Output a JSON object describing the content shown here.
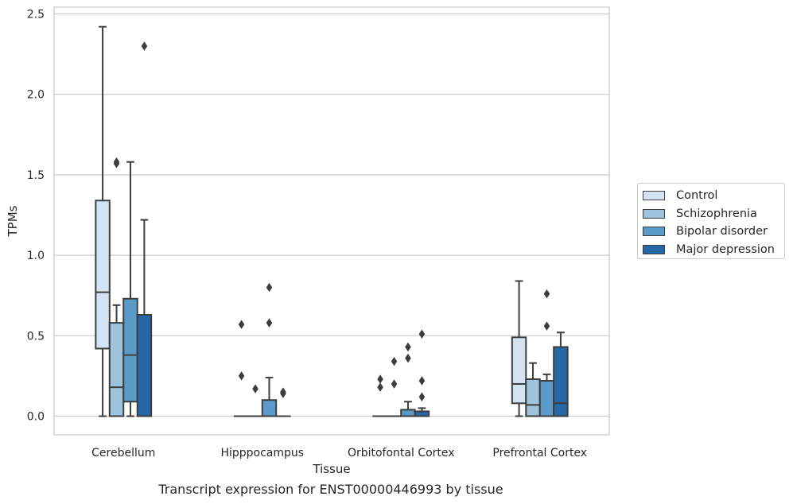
{
  "chart_data": {
    "type": "box",
    "title": "",
    "caption": "Transcript expression for ENST00000446993 by tissue",
    "xlabel": "Tissue",
    "ylabel": "TPMs",
    "ylim": [
      -0.12,
      2.55
    ],
    "yticks": [
      0.0,
      0.5,
      1.0,
      1.5,
      2.0,
      2.5
    ],
    "ytick_labels": [
      "0.0",
      "0.5",
      "1.0",
      "1.5",
      "2.0",
      "2.5"
    ],
    "grid": "horizontal",
    "legend_position": "right, outside plot",
    "categories": [
      "Cerebellum",
      "Hipppocampus",
      "Orbitofontal Cortex",
      "Prefrontal Cortex"
    ],
    "series": [
      {
        "name": "Control",
        "color": "#d3e3f1",
        "boxes": [
          {
            "whislo": 0.0,
            "q1": 0.42,
            "med": 0.77,
            "q3": 1.34,
            "whishi": 2.42,
            "fliers": []
          },
          {
            "whislo": 0.0,
            "q1": 0.0,
            "med": 0.0,
            "q3": 0.0,
            "whishi": 0.0,
            "fliers": [
              0.25,
              0.57
            ]
          },
          {
            "whislo": 0.0,
            "q1": 0.0,
            "med": 0.0,
            "q3": 0.0,
            "whishi": 0.0,
            "fliers": [
              0.18,
              0.23
            ]
          },
          {
            "whislo": 0.0,
            "q1": 0.08,
            "med": 0.2,
            "q3": 0.49,
            "whishi": 0.84,
            "fliers": []
          }
        ]
      },
      {
        "name": "Schizophrenia",
        "color": "#9dc3dd",
        "boxes": [
          {
            "whislo": 0.0,
            "q1": 0.0,
            "med": 0.18,
            "q3": 0.58,
            "whishi": 0.69,
            "fliers": [
              1.57,
              1.58
            ]
          },
          {
            "whislo": 0.0,
            "q1": 0.0,
            "med": 0.0,
            "q3": 0.0,
            "whishi": 0.0,
            "fliers": [
              0.17
            ]
          },
          {
            "whislo": 0.0,
            "q1": 0.0,
            "med": 0.0,
            "q3": 0.0,
            "whishi": 0.0,
            "fliers": [
              0.2,
              0.34
            ]
          },
          {
            "whislo": 0.0,
            "q1": 0.0,
            "med": 0.07,
            "q3": 0.23,
            "whishi": 0.33,
            "fliers": []
          }
        ]
      },
      {
        "name": "Bipolar disorder",
        "color": "#5a9bc9",
        "boxes": [
          {
            "whislo": 0.0,
            "q1": 0.09,
            "med": 0.38,
            "q3": 0.73,
            "whishi": 1.58,
            "fliers": []
          },
          {
            "whislo": 0.0,
            "q1": 0.0,
            "med": 0.0,
            "q3": 0.1,
            "whishi": 0.24,
            "fliers": [
              0.58,
              0.8
            ]
          },
          {
            "whislo": 0.0,
            "q1": 0.0,
            "med": 0.0,
            "q3": 0.04,
            "whishi": 0.09,
            "fliers": [
              0.36,
              0.43
            ]
          },
          {
            "whislo": 0.0,
            "q1": 0.0,
            "med": 0.0,
            "q3": 0.22,
            "whishi": 0.26,
            "fliers": [
              0.56,
              0.76
            ]
          }
        ]
      },
      {
        "name": "Major depression",
        "color": "#2667a8",
        "boxes": [
          {
            "whislo": 0.0,
            "q1": 0.0,
            "med": 0.0,
            "q3": 0.63,
            "whishi": 1.22,
            "fliers": [
              2.3
            ]
          },
          {
            "whislo": 0.0,
            "q1": 0.0,
            "med": 0.0,
            "q3": 0.0,
            "whishi": 0.0,
            "fliers": [
              0.14,
              0.15
            ]
          },
          {
            "whislo": 0.0,
            "q1": 0.0,
            "med": 0.0,
            "q3": 0.03,
            "whishi": 0.05,
            "fliers": [
              0.12,
              0.22,
              0.51
            ]
          },
          {
            "whislo": 0.0,
            "q1": 0.0,
            "med": 0.08,
            "q3": 0.43,
            "whishi": 0.52,
            "fliers": []
          }
        ]
      }
    ]
  }
}
